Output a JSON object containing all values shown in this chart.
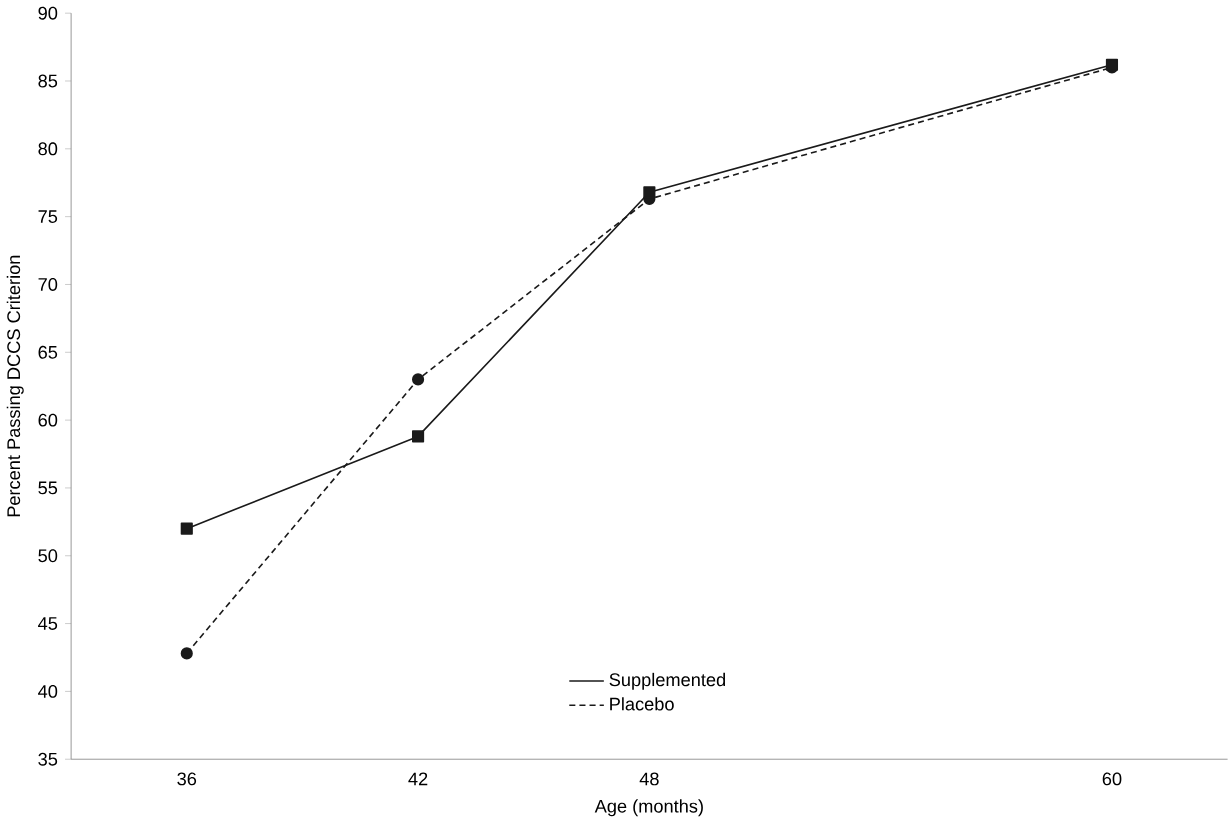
{
  "chart_data": {
    "type": "line",
    "xlabel": "Age (months)",
    "ylabel": "Percent Passing DCCS Criterion",
    "x": [
      36,
      42,
      48,
      60
    ],
    "xlim": [
      33,
      63
    ],
    "xticks": [
      36,
      42,
      48,
      60
    ],
    "ylim": [
      35,
      90
    ],
    "yticks": [
      35,
      40,
      45,
      50,
      55,
      60,
      65,
      70,
      75,
      80,
      85,
      90
    ],
    "grid": false,
    "legend": "bottom",
    "series": [
      {
        "name": "Supplemented",
        "color": "#1a1a1a",
        "values": [
          52,
          58.8,
          76.8,
          86.2
        ],
        "marker": "square",
        "line_style": "solid"
      },
      {
        "name": "Placebo",
        "color": "#1a1a1a",
        "values": [
          42.8,
          63,
          76.3,
          86
        ],
        "marker": "circle",
        "line_style": "dashed"
      }
    ]
  }
}
